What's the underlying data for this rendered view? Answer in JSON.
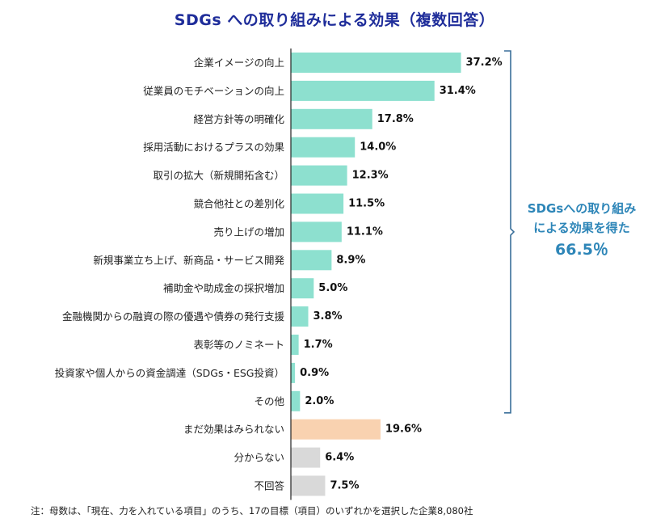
{
  "title": "SDGs への取り組みによる効果（複数回答）",
  "callout": {
    "line1": "SDGsへの取り組み",
    "line2": "による効果を得た",
    "value": "66.5％"
  },
  "note": "注：母数は、「現在、力を入れている項目」のうち、17の目標（項目）のいずれかを選択した企業8,080社",
  "colors": {
    "effect": "#8de0cf",
    "not_yet": "#f9d2b0",
    "other": "#d9d9d9",
    "title": "#1f2d9a",
    "callout": "#2e86b8",
    "bracket": "#3a6f9a"
  },
  "chart_data": {
    "type": "bar",
    "orientation": "horizontal",
    "categories": [
      "企業イメージの向上",
      "従業員のモチベーションの向上",
      "経営方針等の明確化",
      "採用活動におけるプラスの効果",
      "取引の拡大（新規開拓含む）",
      "競合他社との差別化",
      "売り上げの増加",
      "新規事業立ち上げ、新商品・サービス開発",
      "補助金や助成金の採択増加",
      "金融機関からの融資の際の優遇や債券の発行支援",
      "表彰等のノミネート",
      "投資家や個人からの資金調達（SDGs・ESG投資）",
      "その他",
      "まだ効果はみられない",
      "分からない",
      "不回答"
    ],
    "values": [
      37.2,
      31.4,
      17.8,
      14.0,
      12.3,
      11.5,
      11.1,
      8.9,
      5.0,
      3.8,
      1.7,
      0.9,
      2.0,
      19.6,
      6.4,
      7.5
    ],
    "value_labels": [
      "37.2%",
      "31.4%",
      "17.8%",
      "14.0%",
      "12.3%",
      "11.5%",
      "11.1%",
      "8.9%",
      "5.0%",
      "3.8%",
      "1.7%",
      "0.9%",
      "2.0%",
      "19.6%",
      "6.4%",
      "7.5%"
    ],
    "groups": [
      "effect",
      "effect",
      "effect",
      "effect",
      "effect",
      "effect",
      "effect",
      "effect",
      "effect",
      "effect",
      "effect",
      "effect",
      "effect",
      "not_yet",
      "other",
      "other"
    ],
    "xlim": [
      0,
      40
    ],
    "grid": false,
    "legend": "none"
  }
}
